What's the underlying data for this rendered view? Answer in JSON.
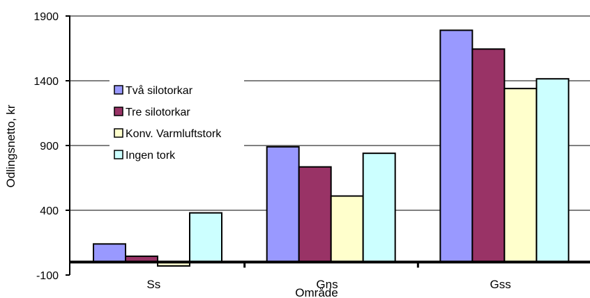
{
  "chart_data": {
    "type": "bar",
    "title": "",
    "xlabel": "Område",
    "ylabel": "Odlingsnetto, kr",
    "categories": [
      "Ss",
      "Gns",
      "Gss"
    ],
    "series": [
      {
        "name": "Två silotorkar",
        "color": "#9999ff",
        "values": [
          140,
          890,
          1790
        ]
      },
      {
        "name": "Tre silotorkar",
        "color": "#993366",
        "values": [
          45,
          735,
          1645
        ]
      },
      {
        "name": "Konv. Varmluftstork",
        "color": "#ffffcc",
        "values": [
          -30,
          510,
          1340
        ]
      },
      {
        "name": "Ingen tork",
        "color": "#ccffff",
        "values": [
          380,
          840,
          1415
        ]
      }
    ],
    "ylim": [
      -100,
      1900
    ],
    "yticks": [
      -100,
      400,
      900,
      1400,
      1900
    ],
    "ytick_labels": [
      "-100",
      "400",
      "900",
      "1400",
      "1900"
    ],
    "grid": true,
    "legend_position": "left, inside plot"
  }
}
